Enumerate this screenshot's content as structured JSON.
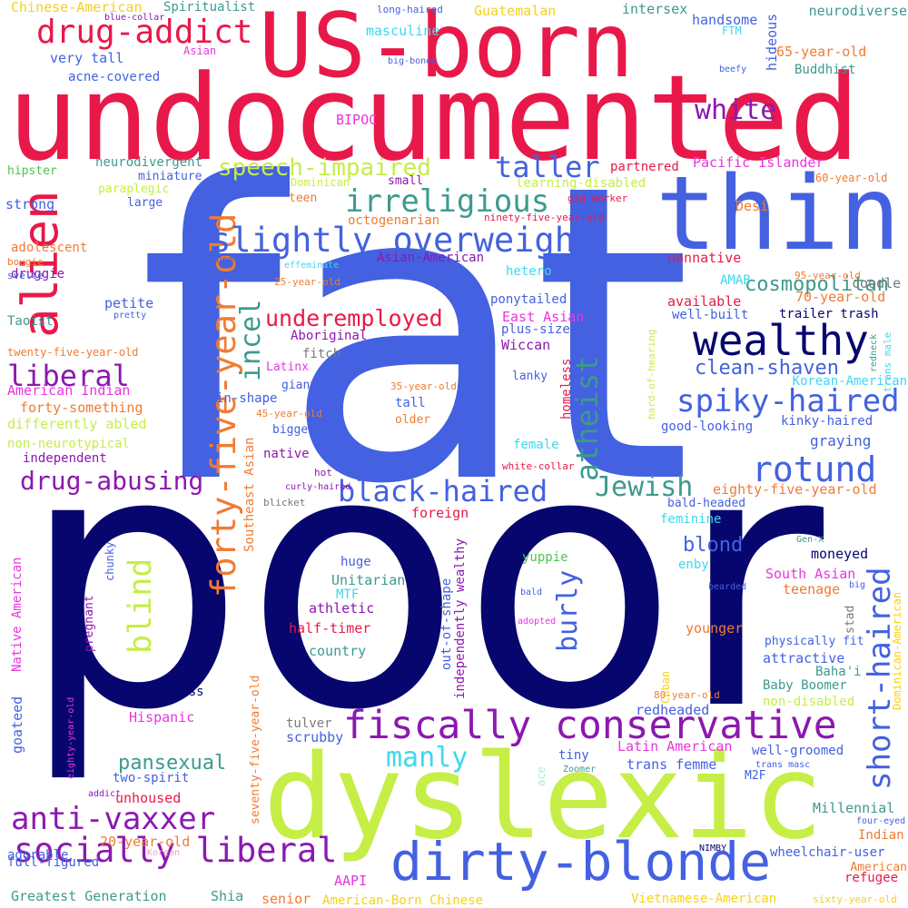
{
  "colors": {
    "red": "#e8194a",
    "blue": "#4361e0",
    "navy": "#06066e",
    "lime": "#c5ee46",
    "orange": "#f07b34",
    "purple": "#8c18b0",
    "teal": "#3d9a8e",
    "cyan": "#3fd7ee",
    "magenta": "#e836e0",
    "yellow": "#f5d21c",
    "green": "#4fc24f",
    "gray": "#7a7a7a",
    "pink": "#f0a0c8",
    "mint": "#9ef0d6"
  },
  "words": {
    "w001": "fat",
    "w002": "poor",
    "w003": "undocumented",
    "w004": "US-born",
    "w005": "dyslexic",
    "w006": "thin",
    "w007": "dirty-blonde",
    "w008": "fiscally conservative",
    "w009": "alien",
    "w010": "forty-five-year-old",
    "w011": "wealthy",
    "w012": "slightly overweight",
    "w013": "socially liberal",
    "w014": "anti-vaxxer",
    "w015": "drug-addict",
    "w016": "irreligious",
    "w017": "spiky-haired",
    "w018": "short-haired",
    "w019": "rotund",
    "w020": "black-haired",
    "w021": "blind",
    "w022": "atheist",
    "w023": "speech-impaired",
    "w024": "liberal",
    "w025": "drug-abusing",
    "w026": "taller",
    "w027": "white",
    "w028": "incel",
    "w029": "Jewish",
    "w030": "manly",
    "w031": "burly",
    "w032": "underemployed",
    "w033": "clean-shaven",
    "w034": "cosmopolitan",
    "w035": "pansexual",
    "w036": "blond",
    "w037": "Chinese-American",
    "w038": "Spiritualist",
    "w039": "blue-collar",
    "w040": "long-haired",
    "w041": "Guatemalan",
    "w042": "intersex",
    "w043": "neurodiverse",
    "w044": "masculine",
    "w045": "handsome",
    "w046": "FTM",
    "w047": "hideous",
    "w048": "Asian",
    "w049": "very tall",
    "w050": "big-boned",
    "w051": "65-year-old",
    "w052": "acne-covered",
    "w053": "beefy",
    "w054": "Buddhist",
    "w055": "BIPOC",
    "w056": "hipster",
    "w057": "neurodivergent",
    "w058": "miniature",
    "w059": "paraplegic",
    "w060": "learning-disabled",
    "w061": "partnered",
    "w062": "Pacific Islander",
    "w063": "60-year-old",
    "w064": "Dominican",
    "w065": "gig worker",
    "w066": "strong",
    "w067": "large",
    "w068": "teen",
    "w069": "Desi",
    "w070": "octogenarian",
    "w071": "ninety-five-year-old",
    "w072": "adolescent",
    "w073": "bougie",
    "w074": "homely",
    "w075": "Asian-American",
    "w076": "druggie",
    "w077": "effeminate",
    "w078": "hetero",
    "w079": "nonnative",
    "w080": "svelte",
    "w081": "25-year-old",
    "w082": "AMAB",
    "w083": "95-year-old",
    "w084": "coodle",
    "w085": "petite",
    "w086": "pretty",
    "w087": "ponytailed",
    "w088": "available",
    "w089": "70-year-old",
    "w090": "Taoist",
    "w091": "East Asian",
    "w092": "well-built",
    "w093": "trailer trash",
    "w094": "Aboriginal",
    "w095": "plus-sized",
    "w096": "hard-of-hearing",
    "w097": "redneck",
    "w098": "trans male",
    "w099": "twenty-five-year-old",
    "w100": "fitch",
    "w101": "Wiccan",
    "w102": "Latinx",
    "w103": "lanky",
    "w104": "American Indian",
    "w105": "giant",
    "w106": "Korean-American",
    "w107": "35-year-old",
    "w108": "forty-something",
    "w109": "in-shape",
    "w110": "tall",
    "w111": "homeless",
    "w112": "kinky-haired",
    "w113": "differently abled",
    "w114": "45-year-old",
    "w115": "good-looking",
    "w116": "bigger",
    "w117": "older",
    "w118": "non-neurotypical",
    "w119": "graying",
    "w120": "independent",
    "w121": "native",
    "w122": "female",
    "w123": "white-collar",
    "w124": "hot",
    "w125": "Southeast Asian",
    "w126": "curly-haired",
    "w127": "eighty-five-year-old",
    "w128": "blicket",
    "w129": "bald-headed",
    "w130": "foreign",
    "w131": "feminine",
    "w132": "chunky",
    "w133": "yuppie",
    "w134": "Gen-X",
    "w135": "huge",
    "w136": "moneyed",
    "w137": "out-of-shape",
    "w138": "independently wealthy",
    "w139": "Native American",
    "w140": "enby",
    "w141": "Unitarian",
    "w142": "pregnant",
    "w143": "South Asian",
    "w144": "bearded",
    "w145": "big",
    "w146": "MTF",
    "w147": "bald",
    "w148": "teenage",
    "w149": "stad",
    "w150": "athletic",
    "w151": "adopted",
    "w152": "Dominican-American",
    "w153": "half-timer",
    "w154": "younger",
    "w155": "physically fit",
    "w156": "country",
    "w157": "attractive",
    "w158": "Cuban",
    "w159": "Baha'i",
    "w160": "seventy-five-year-old",
    "w161": "Baby Boomer",
    "w162": "goateed",
    "w163": "working-class",
    "w164": "80-year-old",
    "w165": "non-disabled",
    "w166": "redheaded",
    "w167": "tulver",
    "w168": "Hispanic",
    "w169": "scrubby",
    "w170": "eighty-year-old",
    "w171": "Latin American",
    "w172": "well-groomed",
    "w173": "tiny",
    "w174": "trans femme",
    "w175": "ace",
    "w176": "two-spirit",
    "w177": "Zoomer",
    "w178": "trans masc",
    "w179": "M2F",
    "w180": "addict",
    "w181": "unhoused",
    "w182": "Millennial",
    "w183": "four-eyed",
    "w184": "full-figured",
    "w185": "20-year-old",
    "w186": "NIMBY",
    "w187": "Indian",
    "w188": "adorable",
    "w189": "Korean",
    "w190": "wheelchair-user",
    "w191": "American",
    "w192": "AAPI",
    "w193": "refugee",
    "w194": "Greatest Generation",
    "w195": "Shia",
    "w196": "senior",
    "w197": "American-Born Chinese",
    "w198": "Vietnamese-American",
    "w199": "sixty-year-old",
    "w200": "small"
  }
}
